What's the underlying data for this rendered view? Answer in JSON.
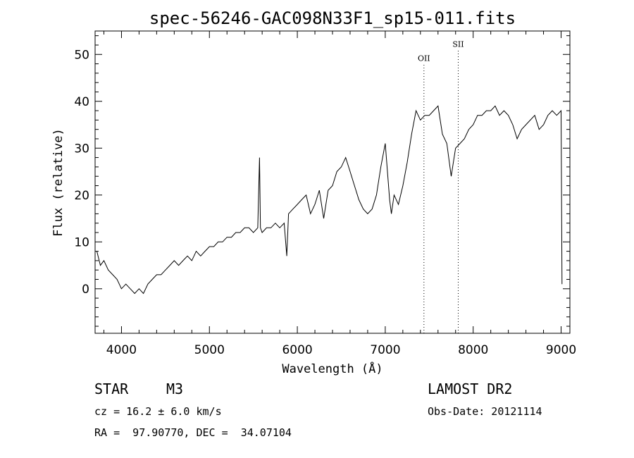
{
  "chart_data": {
    "type": "line",
    "title": "spec-56246-GAC098N33F1_sp15-011.fits",
    "xlabel": "Wavelength (Å)",
    "ylabel": "Flux (relative)",
    "xlim": [
      3700,
      9100
    ],
    "ylim": [
      -9.5,
      55
    ],
    "xticks": [
      "4000",
      "5000",
      "6000",
      "7000",
      "8000",
      "9000"
    ],
    "yticks": [
      "0",
      "10",
      "20",
      "30",
      "40",
      "50"
    ],
    "lines": [
      {
        "label": "OII",
        "wavelength": 7440
      },
      {
        "label": "SII",
        "wavelength": 7830
      }
    ],
    "series": [
      {
        "x": [
          3720,
          3760,
          3800,
          3850,
          3900,
          3950,
          4000,
          4050,
          4100,
          4150,
          4200,
          4250,
          4300,
          4350,
          4400,
          4450,
          4500,
          4550,
          4600,
          4650,
          4700,
          4750,
          4800,
          4850,
          4900,
          4950,
          5000,
          5050,
          5100,
          5150,
          5200,
          5250,
          5300,
          5350,
          5400,
          5450,
          5500,
          5550,
          5570,
          5580,
          5600,
          5650,
          5700,
          5750,
          5800,
          5850,
          5880,
          5900,
          5950,
          6000,
          6050,
          6100,
          6150,
          6200,
          6250,
          6300,
          6350,
          6400,
          6450,
          6500,
          6550,
          6600,
          6650,
          6700,
          6750,
          6800,
          6850,
          6900,
          6950,
          7000,
          7050,
          7070,
          7100,
          7150,
          7200,
          7250,
          7300,
          7350,
          7400,
          7450,
          7500,
          7550,
          7600,
          7650,
          7700,
          7750,
          7800,
          7850,
          7900,
          7950,
          8000,
          8050,
          8100,
          8150,
          8200,
          8250,
          8300,
          8350,
          8400,
          8450,
          8500,
          8550,
          8600,
          8650,
          8700,
          8750,
          8800,
          8850,
          8900,
          8950,
          9000,
          9010
        ],
        "y": [
          8,
          5,
          6,
          4,
          3,
          2,
          0,
          1,
          0,
          -1,
          0,
          -1,
          1,
          2,
          3,
          3,
          4,
          5,
          6,
          5,
          6,
          7,
          6,
          8,
          7,
          8,
          9,
          9,
          10,
          10,
          11,
          11,
          12,
          12,
          13,
          13,
          12,
          13,
          28,
          13,
          12,
          13,
          13,
          14,
          13,
          14,
          7,
          16,
          17,
          18,
          19,
          20,
          16,
          18,
          21,
          15,
          21,
          22,
          25,
          26,
          28,
          25,
          22,
          19,
          17,
          16,
          17,
          20,
          26,
          31,
          19,
          16,
          20,
          18,
          22,
          27,
          33,
          38,
          36,
          37,
          37,
          38,
          39,
          33,
          31,
          24,
          30,
          31,
          32,
          34,
          35,
          37,
          37,
          38,
          38,
          39,
          37,
          38,
          37,
          35,
          32,
          34,
          35,
          36,
          37,
          34,
          35,
          37,
          38,
          37,
          38,
          1
        ]
      }
    ]
  },
  "info": {
    "class": "STAR",
    "subclass": "M3",
    "survey": "LAMOST DR2",
    "cz": "cz = 16.2 ± 6.0 km/s",
    "obsdate": "Obs-Date: 20121114",
    "radec": "RA =  97.90770, DEC =  34.07104"
  }
}
